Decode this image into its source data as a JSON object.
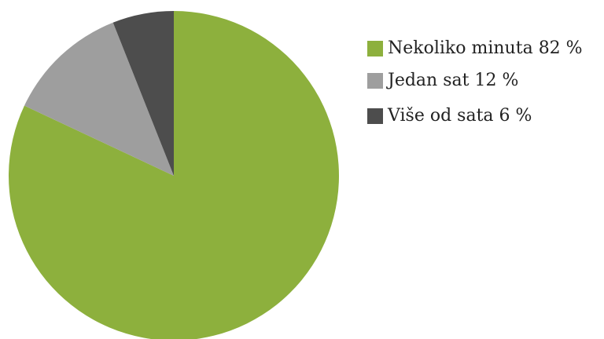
{
  "chart_data": {
    "type": "pie",
    "categories": [
      "Nekoliko minuta",
      "Jedan sat",
      "Više od sata"
    ],
    "values": [
      82,
      12,
      6
    ],
    "value_labels": [
      "82 %",
      "12 %",
      "6 %"
    ],
    "colors": [
      "#8db03d",
      "#9e9e9e",
      "#4d4d4d"
    ],
    "legend": "right"
  }
}
